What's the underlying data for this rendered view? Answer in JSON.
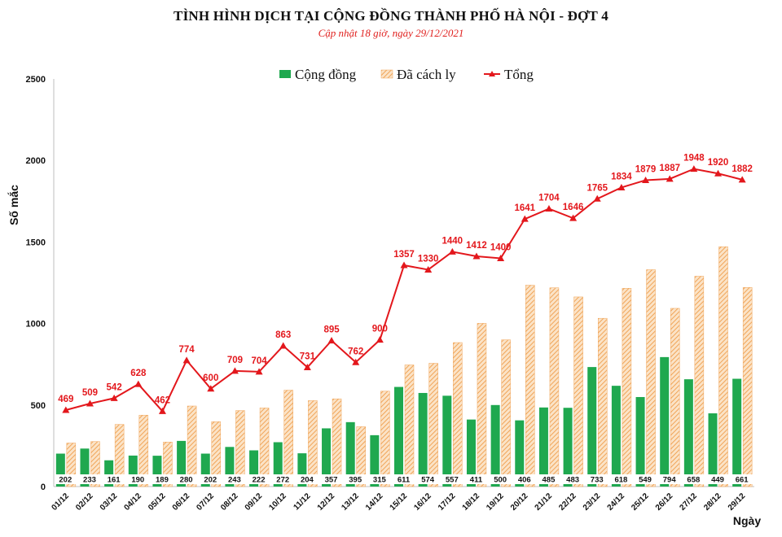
{
  "header": {
    "title": "TÌNH HÌNH DỊCH TẠI CỘNG ĐỒNG THÀNH PHỐ HÀ NỘI - ĐỢT 4",
    "subtitle": "Cập nhật 18 giờ, ngày 29/12/2021"
  },
  "colors": {
    "cong_dong": "#1fa84f",
    "da_cach_ly": "#f6b26b",
    "tong": "#e3171c"
  },
  "chart_data": {
    "type": "bar",
    "xlabel": "Ngày",
    "ylabel": "Số mắc",
    "ylim": [
      0,
      2500
    ],
    "yticks": [
      0,
      500,
      1000,
      1500,
      2000,
      2500
    ],
    "legend": "top-center",
    "grid": false,
    "categories": [
      "01/12",
      "02/12",
      "03/12",
      "04/12",
      "05/12",
      "06/12",
      "07/12",
      "08/12",
      "09/12",
      "10/12",
      "11/12",
      "12/12",
      "13/12",
      "14/12",
      "15/12",
      "16/12",
      "17/12",
      "18/12",
      "19/12",
      "20/12",
      "21/12",
      "22/12",
      "23/12",
      "24/12",
      "25/12",
      "26/12",
      "27/12",
      "28/12",
      "29/12"
    ],
    "series": [
      {
        "name": "Cộng đồng",
        "type": "bar",
        "values": [
          202,
          233,
          161,
          190,
          189,
          280,
          202,
          243,
          222,
          272,
          204,
          357,
          395,
          315,
          611,
          574,
          557,
          411,
          500,
          406,
          485,
          483,
          733,
          618,
          549,
          794,
          658,
          449,
          661
        ]
      },
      {
        "name": "Đã cách ly",
        "type": "bar",
        "values": [
          267,
          276,
          381,
          438,
          273,
          494,
          398,
          466,
          482,
          591,
          527,
          538,
          367,
          585,
          746,
          756,
          883,
          1001,
          900,
          1235,
          1219,
          1163,
          1032,
          1216,
          1330,
          1093,
          1290,
          1471,
          1221
        ]
      },
      {
        "name": "Tổng",
        "type": "line",
        "values": [
          469,
          509,
          542,
          628,
          462,
          774,
          600,
          709,
          704,
          863,
          731,
          895,
          762,
          900,
          1357,
          1330,
          1440,
          1412,
          1400,
          1641,
          1704,
          1646,
          1765,
          1834,
          1879,
          1887,
          1948,
          1920,
          1882
        ]
      }
    ]
  }
}
